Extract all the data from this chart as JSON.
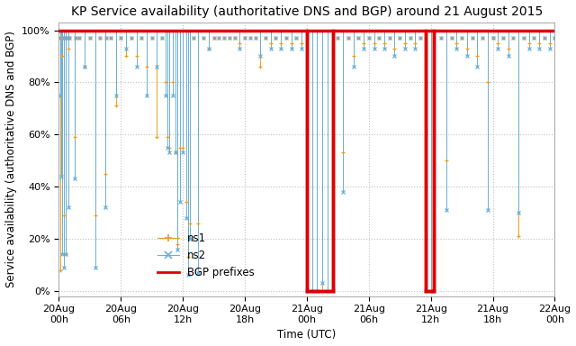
{
  "title": "KP Service availability (authoritative DNS and BGP) around 21 August 2015",
  "xlabel": "Time (UTC)",
  "ylabel": "Service availability (authoritative DNS and BGP)",
  "ylim": [
    -2,
    103
  ],
  "yticks": [
    0,
    20,
    40,
    60,
    80,
    100
  ],
  "ytick_labels": [
    "0%",
    "20%",
    "40%",
    "60%",
    "80%",
    "100%"
  ],
  "color_ns1": "#e8a020",
  "color_ns2": "#6ab0d8",
  "color_bgp": "#dd0000",
  "background_color": "#ffffff",
  "grid_color": "#c0c0c0",
  "title_fontsize": 10,
  "axis_label_fontsize": 8.5,
  "tick_fontsize": 8,
  "legend_fontsize": 8.5,
  "total_hours": 48,
  "x_tick_positions": [
    0,
    6,
    12,
    18,
    24,
    30,
    36,
    42,
    48
  ],
  "x_tick_labels": [
    "20Aug\n00h",
    "20Aug\n06h",
    "20Aug\n12h",
    "20Aug\n18h",
    "21Aug\n00h",
    "21Aug\n06h",
    "21Aug\n12h",
    "21Aug\n18h",
    "22Aug\n00h"
  ],
  "bgp_outages": [
    {
      "start": 24.0,
      "end": 26.5
    },
    {
      "start": 35.5,
      "end": 36.3
    }
  ],
  "ns1_data": [
    [
      0.0,
      97
    ],
    [
      0.1,
      8
    ],
    [
      0.2,
      97
    ],
    [
      0.3,
      90
    ],
    [
      0.4,
      97
    ],
    [
      0.5,
      29
    ],
    [
      0.6,
      97
    ],
    [
      0.7,
      14
    ],
    [
      0.8,
      97
    ],
    [
      0.9,
      93
    ],
    [
      1.0,
      97
    ],
    [
      1.5,
      59
    ],
    [
      1.6,
      97
    ],
    [
      2.0,
      97
    ],
    [
      2.5,
      86
    ],
    [
      3.0,
      97
    ],
    [
      3.5,
      29
    ],
    [
      4.0,
      97
    ],
    [
      4.5,
      45
    ],
    [
      4.6,
      97
    ],
    [
      5.0,
      97
    ],
    [
      5.5,
      71
    ],
    [
      6.0,
      97
    ],
    [
      6.5,
      90
    ],
    [
      7.0,
      97
    ],
    [
      7.5,
      90
    ],
    [
      8.0,
      97
    ],
    [
      8.5,
      86
    ],
    [
      9.0,
      97
    ],
    [
      9.5,
      59
    ],
    [
      10.0,
      97
    ],
    [
      10.3,
      80
    ],
    [
      10.5,
      59
    ],
    [
      10.7,
      55
    ],
    [
      11.0,
      80
    ],
    [
      11.3,
      53
    ],
    [
      11.5,
      18
    ],
    [
      11.7,
      55
    ],
    [
      12.0,
      55
    ],
    [
      12.3,
      34
    ],
    [
      12.5,
      13
    ],
    [
      12.7,
      26
    ],
    [
      13.0,
      97
    ],
    [
      13.5,
      26
    ],
    [
      14.0,
      97
    ],
    [
      14.5,
      93
    ],
    [
      15.0,
      97
    ],
    [
      15.5,
      97
    ],
    [
      16.0,
      97
    ],
    [
      16.5,
      97
    ],
    [
      17.0,
      97
    ],
    [
      17.5,
      95
    ],
    [
      18.0,
      97
    ],
    [
      18.5,
      97
    ],
    [
      19.0,
      97
    ],
    [
      19.5,
      86
    ],
    [
      20.0,
      97
    ],
    [
      20.5,
      95
    ],
    [
      21.0,
      97
    ],
    [
      21.5,
      95
    ],
    [
      22.0,
      97
    ],
    [
      22.5,
      95
    ],
    [
      23.0,
      97
    ],
    [
      23.5,
      95
    ],
    [
      24.0,
      0
    ],
    [
      24.5,
      0
    ],
    [
      25.0,
      0
    ],
    [
      25.5,
      0
    ],
    [
      26.0,
      0
    ],
    [
      26.5,
      0
    ],
    [
      27.0,
      97
    ],
    [
      27.5,
      53
    ],
    [
      28.0,
      97
    ],
    [
      28.5,
      90
    ],
    [
      29.0,
      97
    ],
    [
      29.5,
      95
    ],
    [
      30.0,
      97
    ],
    [
      30.5,
      95
    ],
    [
      31.0,
      97
    ],
    [
      31.5,
      95
    ],
    [
      32.0,
      97
    ],
    [
      32.5,
      93
    ],
    [
      33.0,
      97
    ],
    [
      33.5,
      95
    ],
    [
      34.0,
      97
    ],
    [
      34.5,
      95
    ],
    [
      35.0,
      97
    ],
    [
      35.5,
      0
    ],
    [
      36.0,
      0
    ],
    [
      36.3,
      0
    ],
    [
      37.0,
      97
    ],
    [
      37.5,
      50
    ],
    [
      38.0,
      97
    ],
    [
      38.5,
      95
    ],
    [
      39.0,
      97
    ],
    [
      39.5,
      93
    ],
    [
      40.0,
      97
    ],
    [
      40.5,
      90
    ],
    [
      41.0,
      97
    ],
    [
      41.5,
      80
    ],
    [
      42.0,
      97
    ],
    [
      42.5,
      95
    ],
    [
      43.0,
      97
    ],
    [
      43.5,
      93
    ],
    [
      44.0,
      97
    ],
    [
      44.5,
      21
    ],
    [
      45.0,
      97
    ],
    [
      45.5,
      95
    ],
    [
      46.0,
      97
    ],
    [
      46.5,
      95
    ],
    [
      47.0,
      97
    ],
    [
      47.5,
      95
    ],
    [
      48.0,
      97
    ]
  ],
  "ns2_data": [
    [
      0.0,
      97
    ],
    [
      0.1,
      75
    ],
    [
      0.2,
      44
    ],
    [
      0.3,
      14
    ],
    [
      0.4,
      97
    ],
    [
      0.5,
      9
    ],
    [
      0.6,
      97
    ],
    [
      0.7,
      14
    ],
    [
      0.8,
      97
    ],
    [
      0.9,
      32
    ],
    [
      1.0,
      97
    ],
    [
      1.5,
      43
    ],
    [
      1.6,
      97
    ],
    [
      2.0,
      97
    ],
    [
      2.5,
      86
    ],
    [
      3.0,
      97
    ],
    [
      3.5,
      9
    ],
    [
      4.0,
      97
    ],
    [
      4.5,
      32
    ],
    [
      4.6,
      97
    ],
    [
      5.0,
      97
    ],
    [
      5.5,
      75
    ],
    [
      6.0,
      97
    ],
    [
      6.5,
      93
    ],
    [
      7.0,
      97
    ],
    [
      7.5,
      86
    ],
    [
      8.0,
      97
    ],
    [
      8.5,
      75
    ],
    [
      9.0,
      97
    ],
    [
      9.5,
      86
    ],
    [
      10.0,
      97
    ],
    [
      10.3,
      75
    ],
    [
      10.5,
      55
    ],
    [
      10.7,
      53
    ],
    [
      11.0,
      75
    ],
    [
      11.3,
      53
    ],
    [
      11.5,
      16
    ],
    [
      11.7,
      34
    ],
    [
      12.0,
      53
    ],
    [
      12.3,
      28
    ],
    [
      12.5,
      6
    ],
    [
      12.7,
      20
    ],
    [
      13.0,
      97
    ],
    [
      13.5,
      7
    ],
    [
      14.0,
      97
    ],
    [
      14.5,
      93
    ],
    [
      15.0,
      97
    ],
    [
      15.5,
      97
    ],
    [
      16.0,
      97
    ],
    [
      16.5,
      97
    ],
    [
      17.0,
      97
    ],
    [
      17.5,
      93
    ],
    [
      18.0,
      97
    ],
    [
      18.5,
      97
    ],
    [
      19.0,
      97
    ],
    [
      19.5,
      90
    ],
    [
      20.0,
      97
    ],
    [
      20.5,
      93
    ],
    [
      21.0,
      97
    ],
    [
      21.5,
      93
    ],
    [
      22.0,
      97
    ],
    [
      22.5,
      93
    ],
    [
      23.0,
      97
    ],
    [
      23.5,
      93
    ],
    [
      24.0,
      0
    ],
    [
      24.5,
      0
    ],
    [
      25.0,
      0
    ],
    [
      25.5,
      3
    ],
    [
      26.0,
      0
    ],
    [
      26.5,
      0
    ],
    [
      27.0,
      97
    ],
    [
      27.5,
      38
    ],
    [
      28.0,
      97
    ],
    [
      28.5,
      86
    ],
    [
      29.0,
      97
    ],
    [
      29.5,
      93
    ],
    [
      30.0,
      97
    ],
    [
      30.5,
      93
    ],
    [
      31.0,
      97
    ],
    [
      31.5,
      93
    ],
    [
      32.0,
      97
    ],
    [
      32.5,
      90
    ],
    [
      33.0,
      97
    ],
    [
      33.5,
      93
    ],
    [
      34.0,
      97
    ],
    [
      34.5,
      93
    ],
    [
      35.0,
      97
    ],
    [
      35.5,
      0
    ],
    [
      36.0,
      0
    ],
    [
      36.3,
      0
    ],
    [
      37.0,
      97
    ],
    [
      37.5,
      31
    ],
    [
      38.0,
      97
    ],
    [
      38.5,
      93
    ],
    [
      39.0,
      97
    ],
    [
      39.5,
      90
    ],
    [
      40.0,
      97
    ],
    [
      40.5,
      86
    ],
    [
      41.0,
      97
    ],
    [
      41.5,
      31
    ],
    [
      42.0,
      97
    ],
    [
      42.5,
      93
    ],
    [
      43.0,
      97
    ],
    [
      43.5,
      90
    ],
    [
      44.0,
      97
    ],
    [
      44.5,
      30
    ],
    [
      45.0,
      97
    ],
    [
      45.5,
      93
    ],
    [
      46.0,
      97
    ],
    [
      46.5,
      93
    ],
    [
      47.0,
      97
    ],
    [
      47.5,
      93
    ],
    [
      48.0,
      97
    ]
  ],
  "bgp_step": [
    [
      0.0,
      100
    ],
    [
      24.0,
      100
    ],
    [
      24.0,
      0
    ],
    [
      26.5,
      0
    ],
    [
      26.5,
      100
    ],
    [
      35.5,
      100
    ],
    [
      35.5,
      0
    ],
    [
      36.3,
      0
    ],
    [
      36.3,
      100
    ],
    [
      48.0,
      100
    ]
  ]
}
